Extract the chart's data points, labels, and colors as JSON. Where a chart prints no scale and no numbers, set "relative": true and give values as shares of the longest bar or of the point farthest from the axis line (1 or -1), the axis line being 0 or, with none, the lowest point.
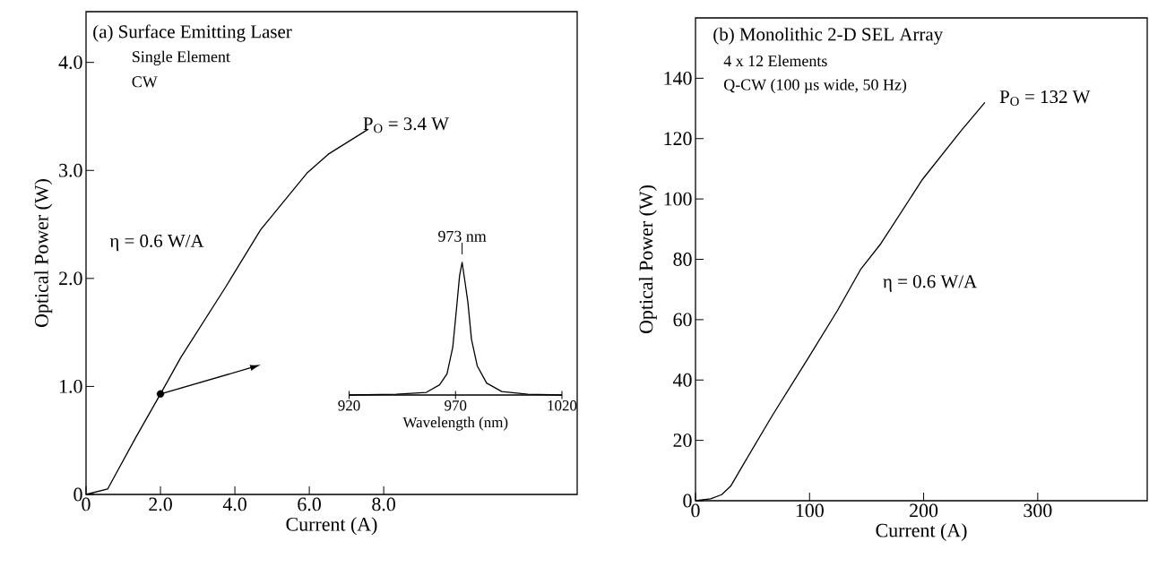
{
  "chart_data": [
    {
      "type": "line",
      "title": "(a) Surface Emitting  Laser",
      "subtitle": "Single Element",
      "xlabel": "Current (A)",
      "ylabel": "Optical Power (W)",
      "xlim": [
        0,
        13.2
      ],
      "ylim": [
        0,
        4.47
      ],
      "xticks": [
        0,
        {
          "value": 2,
          "label": "2.0"
        },
        {
          "value": 4,
          "label": "4.0"
        },
        {
          "value": 6,
          "label": "6.0"
        },
        {
          "value": 8,
          "label": "8.0"
        }
      ],
      "yticks": [
        0,
        {
          "value": 1,
          "label": "1.0"
        },
        {
          "value": 2,
          "label": "2.0"
        },
        {
          "value": 3,
          "label": "3.0"
        },
        {
          "value": 4,
          "label": "4.0"
        }
      ],
      "series": [
        {
          "color": "#000000",
          "x": [
            0,
            0.58,
            1.34,
            2.0,
            2.55,
            3.77,
            4.69,
            5.0,
            5.95,
            6.51,
            7.58
          ],
          "values": [
            0,
            0.05,
            0.53,
            0.93,
            1.27,
            1.93,
            2.45,
            2.58,
            2.98,
            3.15,
            3.38
          ]
        },
        {
          "type": "scatter",
          "color": "#000000",
          "marker": "circle",
          "x": [
            2.0
          ],
          "values": [
            0.93
          ]
        }
      ],
      "annotations": [
        "CW",
        "η = 0.6 W/A",
        {
          "text": "P$_{O}$ = 3.4 W",
          "x": 7.58,
          "y": 3.38
        }
      ]
    },
    {
      "type": "line",
      "title": "(b) Monolithic 2-D SEL Array",
      "subtitle": "4 x 12 Elements",
      "xlabel": "Current (A)",
      "ylabel": "Optical Power (W)",
      "xlim": [
        0,
        396
      ],
      "ylim": [
        0,
        160
      ],
      "xticks": [
        0,
        100,
        200,
        300
      ],
      "yticks": [
        0,
        20,
        40,
        60,
        80,
        100,
        120,
        140
      ],
      "series": [
        {
          "color": "#000000",
          "x": [
            0,
            13.3,
            22.9,
            30.8,
            41.9,
            67.3,
            99,
            124.4,
            145,
            162.5,
            199,
            232.4,
            253.7
          ],
          "values": [
            0,
            0.6,
            2,
            4.8,
            12,
            28.2,
            47.4,
            63,
            76.8,
            85.2,
            106.5,
            122.4,
            132
          ]
        }
      ],
      "annotations": [
        "Q-CW (100 µs wide, 50 Hz)",
        "η = 0.6 W/A",
        {
          "text": "P$_{O}$ = 132 W",
          "x": 253.7,
          "y": 132
        }
      ]
    },
    {
      "type": "line",
      "relative": true,
      "xlabel": "Wavelength (nm)",
      "xlim": [
        920,
        1020
      ],
      "xticks": [
        920,
        970,
        1020
      ],
      "series": [
        {
          "color": "#000000",
          "x": [
            920,
            942.1,
            956.3,
            962.5,
            966,
            968.7,
            970.4,
            971.9,
            973.1,
            974.3,
            975.8,
            977.5,
            980.2,
            984.6,
            991.7,
            1004,
            1020
          ],
          "values": [
            0,
            0.006,
            0.02,
            0.077,
            0.16,
            0.36,
            0.64,
            0.9,
            1.0,
            0.87,
            0.7,
            0.42,
            0.22,
            0.09,
            0.026,
            0.006,
            0
          ]
        }
      ],
      "annotations": [
        {
          "text": "973 nm",
          "x": 973.1,
          "y": 1.0
        }
      ]
    }
  ]
}
